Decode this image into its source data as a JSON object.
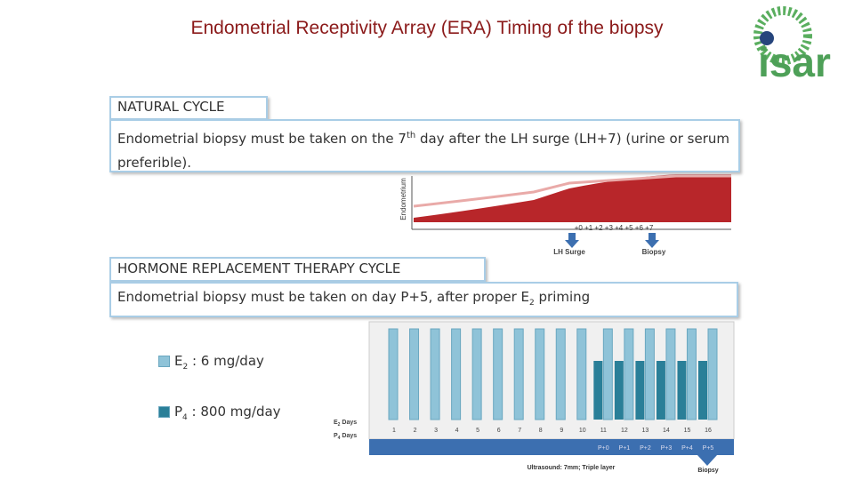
{
  "header": {
    "title": "Endometrial Receptivity Array (ERA) Timing of the biopsy",
    "logo": "isar"
  },
  "natural_cycle": {
    "heading": "NATURAL CYCLE",
    "text_before": "Endometrial biopsy must be taken on the 7",
    "text_sup": "th",
    "text_after": " day after the LH surge (LH+7) (urine or serum preferible).",
    "diagram": {
      "axis_label": "Endometrium",
      "days": "+0 +1 +2 +3 +4 +5 +6 +7",
      "lh_surge": "LH Surge",
      "biopsy": "Biopsy"
    }
  },
  "hrt_cycle": {
    "heading": "HORMONE REPLACEMENT THERAPY CYCLE",
    "text_before": "Endometrial biopsy must be taken on day P+5, after proper E",
    "text_sub": "2",
    "text_after": " priming",
    "legend": [
      {
        "symbol": "E",
        "sub": "2",
        "text": " : 6 mg/day"
      },
      {
        "symbol": "P",
        "sub": "4",
        "text": " : 800 mg/day"
      }
    ],
    "chart": {
      "e2_label": "E",
      "e2_sub": "2",
      "e2_suffix": " Days",
      "p4_label": "P",
      "p4_sub": "4",
      "p4_suffix": " Days",
      "days": [
        "1",
        "2",
        "3",
        "4",
        "5",
        "6",
        "7",
        "8",
        "9",
        "10",
        "11",
        "12",
        "13",
        "14",
        "15",
        "16"
      ],
      "p_labels": [
        "P+0",
        "P+1",
        "P+2",
        "P+3",
        "P+4",
        "P+5"
      ],
      "ultrasound": "Ultrasound: 7mm; Triple layer",
      "biopsy": "Biopsy"
    }
  }
}
